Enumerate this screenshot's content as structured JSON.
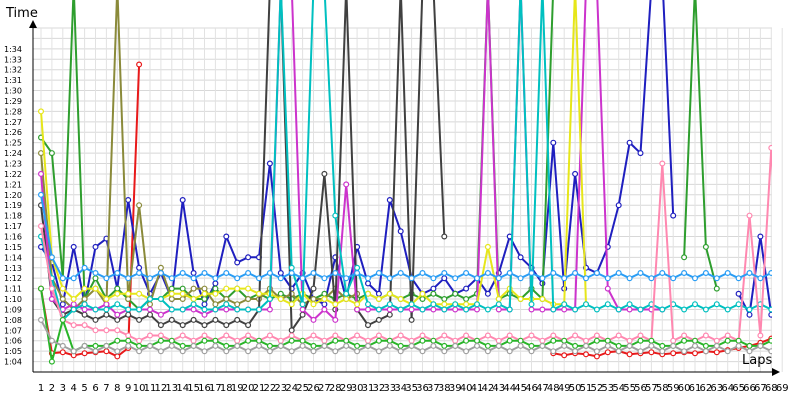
{
  "chart_data": {
    "type": "line",
    "title": "",
    "ylabel": "Time",
    "xlabel": "Laps",
    "x_range": [
      1,
      69
    ],
    "y_ticks": [
      "1:04",
      "1:05",
      "1:06",
      "1:07",
      "1:08",
      "1:09",
      "1:10",
      "1:11",
      "1:12",
      "1:13",
      "1:14",
      "1:15",
      "1:16",
      "1:17",
      "1:18",
      "1:19",
      "1:20",
      "1:21",
      "1:22",
      "1:23",
      "1:24",
      "1:25",
      "1:26",
      "1:27",
      "1:28",
      "1:29",
      "1:30",
      "1:31",
      "1:32",
      "1:33",
      "1:34"
    ],
    "y_range_seconds": [
      63,
      96
    ],
    "grid": true,
    "legend": "none",
    "series": [
      {
        "color": "#e8191a",
        "values": [
          71,
          64.8,
          64.9,
          64.6,
          64.8,
          64.9,
          65,
          64.5,
          65.3,
          92.5,
          null,
          null,
          null,
          null,
          null,
          null,
          null,
          null,
          null,
          null,
          null,
          null,
          null,
          null,
          null,
          null,
          null,
          null,
          null,
          null,
          null,
          null,
          null,
          null,
          null,
          null,
          null,
          null,
          null,
          null,
          null,
          null,
          null,
          null,
          null,
          null,
          null,
          64.8,
          64.6,
          64.8,
          64.7,
          64.5,
          64.9,
          65,
          64.7,
          64.8,
          64.9,
          64.7,
          64.8,
          64.9,
          64.8,
          65,
          64.9,
          65.1,
          65.3,
          65.5,
          65.8,
          66.2,
          66.8
        ]
      },
      {
        "color": "#1f1fbf",
        "values": [
          75,
          73.5,
          69.5,
          75,
          69.5,
          75,
          75.8,
          71,
          79.5,
          73,
          70.5,
          72.5,
          70,
          79.5,
          72.5,
          69.5,
          71.5,
          76,
          73.5,
          74,
          74,
          83,
          72.5,
          71,
          72.5,
          70,
          69.5,
          74,
          70,
          75,
          71.5,
          70.5,
          79.5,
          76.5,
          72,
          70.5,
          71,
          72,
          70.5,
          71,
          72,
          70.5,
          72.5,
          76,
          74,
          73,
          71.5,
          85,
          71,
          82,
          73,
          72.5,
          75,
          79,
          85,
          84,
          100,
          101,
          78,
          null,
          null,
          null,
          null,
          null,
          70.5,
          68.5,
          76,
          68.5,
          71.5
        ]
      },
      {
        "color": "#2e9e2e",
        "values": [
          85.5,
          84,
          72,
          100,
          70,
          72,
          70,
          71,
          70,
          69,
          70,
          70,
          71,
          71,
          70,
          70,
          71,
          70,
          71,
          70,
          70.5,
          70,
          70.5,
          70,
          70.5,
          70,
          70.5,
          70,
          70.5,
          70,
          70.5,
          70,
          70.5,
          70,
          70.5,
          70,
          70.5,
          70,
          70.5,
          70,
          70.5,
          100,
          70,
          70.5,
          70,
          71,
          70,
          100,
          null,
          null,
          null,
          null,
          null,
          null,
          null,
          null,
          null,
          null,
          null,
          74,
          100,
          75,
          71,
          null,
          null,
          null,
          null,
          null,
          null
        ]
      },
      {
        "color": "#8a8a3a",
        "values": [
          84,
          72,
          70,
          69,
          70,
          71,
          69.5,
          100,
          70,
          79,
          69.5,
          73,
          70,
          70,
          71,
          71,
          69.5,
          70,
          69.5,
          70,
          70,
          71,
          70,
          70.5,
          69.5,
          70,
          70,
          71,
          70,
          70.5,
          null,
          null,
          null,
          null,
          null,
          null,
          null,
          null,
          null,
          null,
          null,
          null,
          null,
          null,
          null,
          null,
          null,
          null,
          null,
          null,
          null,
          null,
          null,
          null,
          null,
          null,
          null,
          null,
          null,
          null,
          null,
          null,
          null,
          null,
          null,
          null,
          null,
          null,
          null
        ]
      },
      {
        "color": "#404040",
        "values": [
          79,
          70,
          68.5,
          69,
          68.5,
          68,
          68.5,
          68,
          68.5,
          68,
          68.5,
          67.5,
          68,
          67.5,
          68,
          67.5,
          68,
          67.5,
          68,
          67.5,
          69,
          100,
          100,
          67,
          68.5,
          71,
          82,
          69,
          100,
          69,
          67.5,
          68,
          68.5,
          100,
          68,
          100,
          100,
          76,
          null,
          null,
          null,
          null,
          null,
          null,
          null,
          null,
          null,
          null,
          null,
          null,
          null,
          null,
          null,
          null,
          null,
          null,
          null,
          null,
          null,
          null,
          null,
          null,
          null,
          null,
          null,
          null,
          null,
          null,
          null
        ]
      },
      {
        "color": "#cc33cc",
        "values": [
          82,
          70,
          69,
          69.5,
          69,
          69,
          69.5,
          68.5,
          69,
          69,
          69,
          68.5,
          69,
          69,
          69,
          68.5,
          69,
          69,
          69,
          69,
          69,
          69,
          100,
          100,
          69,
          68,
          69,
          68,
          81,
          69,
          69,
          69,
          69,
          69,
          69,
          69,
          69,
          69,
          69,
          69,
          69,
          100,
          69,
          69,
          100,
          69,
          69,
          69,
          69,
          69,
          100,
          100,
          71,
          69,
          69,
          69,
          69,
          69,
          null,
          null,
          null,
          null,
          null,
          null,
          null,
          null,
          null,
          null,
          null
        ]
      },
      {
        "color": "#e6e61a",
        "values": [
          88,
          74,
          71,
          70,
          71,
          71,
          70,
          70.5,
          70.5,
          70.5,
          70,
          70,
          70.5,
          70.5,
          70,
          70.5,
          70.5,
          71,
          71,
          71,
          70.5,
          70.5,
          70,
          69.5,
          70.5,
          69.5,
          70,
          69.5,
          70,
          69.5,
          70.5,
          70,
          70.5,
          70,
          69.5,
          70.5,
          69.5,
          69.5,
          69.5,
          69.5,
          69.5,
          75,
          70,
          71,
          70,
          70,
          70,
          69.5,
          69.5,
          100,
          69.5,
          null,
          null,
          null,
          null,
          null,
          null,
          null,
          null,
          null,
          null,
          null,
          null,
          null,
          null,
          null,
          null,
          null,
          null
        ]
      },
      {
        "color": "#00c0c0",
        "values": [
          76,
          72,
          68,
          69,
          69.5,
          69,
          69,
          69.5,
          69,
          69,
          70,
          70,
          69,
          69,
          69.5,
          69,
          69,
          69.5,
          69,
          69,
          69,
          70,
          100,
          73,
          69.5,
          100,
          100,
          78,
          70.5,
          73,
          69.5,
          69,
          69.5,
          69,
          69.5,
          69,
          69.5,
          69,
          69.5,
          69,
          69.5,
          69,
          69.5,
          69,
          100,
          69.5,
          100,
          69,
          69.5,
          69,
          69.5,
          69,
          69.5,
          69,
          69.5,
          69,
          69.5,
          69,
          69.5,
          69,
          69.5,
          69,
          69.5,
          69,
          69.5,
          69,
          69.5,
          69,
          69.5
        ]
      },
      {
        "color": "#ff88b0",
        "values": [
          77,
          71,
          68,
          67.5,
          67.5,
          67,
          67,
          67,
          66.5,
          66,
          66.5,
          66.5,
          66,
          66.5,
          66,
          66.5,
          66,
          66.5,
          66,
          66.5,
          66,
          66.5,
          66,
          66.5,
          66,
          66.5,
          66,
          66.5,
          66,
          66.5,
          66,
          66.5,
          66,
          66.5,
          66,
          66.5,
          66,
          66.5,
          66,
          66.5,
          66,
          66.5,
          66,
          66.5,
          66,
          66.5,
          66,
          66.5,
          66,
          66.5,
          66,
          66.5,
          66,
          66.5,
          66,
          66.5,
          66,
          83,
          66,
          66.5,
          66,
          66.5,
          66,
          66.5,
          66,
          78,
          66.5,
          84.5,
          66.5
        ]
      },
      {
        "color": "#28b428",
        "values": [
          71,
          64,
          68,
          65,
          65.5,
          65.5,
          65.5,
          66,
          66,
          65.5,
          65.5,
          66,
          66,
          65.5,
          65.5,
          66,
          66,
          65.5,
          65.5,
          66,
          66,
          65.5,
          65.5,
          66,
          66,
          65.5,
          65.5,
          66,
          66,
          65.5,
          65.5,
          66,
          66,
          65.5,
          65.5,
          66,
          66,
          65.5,
          65.5,
          66,
          66,
          65.5,
          65.5,
          66,
          66,
          65.5,
          65.5,
          66,
          66,
          65.5,
          65.5,
          66,
          66,
          65.5,
          65.5,
          66,
          66,
          65.5,
          65.5,
          66,
          66,
          65.5,
          65.5,
          66,
          66,
          65.5,
          65.5,
          66,
          66
        ]
      },
      {
        "color": "#2a9df4",
        "values": [
          80,
          74,
          72,
          72,
          73,
          72.5,
          72,
          72.5,
          72,
          72.5,
          72,
          72.5,
          72,
          72.5,
          72,
          72.5,
          72,
          72.5,
          72,
          72.5,
          72,
          72.5,
          72,
          72.5,
          72,
          72.5,
          72,
          72.5,
          72,
          72.5,
          72,
          72.5,
          72,
          72.5,
          72,
          72.5,
          72,
          72.5,
          72,
          72.5,
          72,
          72.5,
          72,
          72.5,
          72,
          72.5,
          72,
          72.5,
          72,
          72.5,
          72,
          72.5,
          72,
          72.5,
          72,
          72.5,
          72,
          72.5,
          72,
          72.5,
          72,
          72.5,
          72,
          72.5,
          72,
          72.5,
          72,
          72.5,
          72
        ]
      },
      {
        "color": "#a0a0a0",
        "values": [
          68,
          66,
          65.5,
          65,
          65.5,
          65,
          65.5,
          65,
          65.5,
          65,
          65.5,
          65,
          65.5,
          65,
          65.5,
          65,
          65.5,
          65,
          65.5,
          65,
          65.5,
          65,
          65.5,
          65,
          65.5,
          65,
          65.5,
          65,
          65.5,
          65,
          65.5,
          65,
          65.5,
          65,
          65.5,
          65,
          65.5,
          65,
          65.5,
          65,
          65.5,
          65,
          65.5,
          65,
          65.5,
          65,
          65.5,
          65,
          65.5,
          65,
          65.5,
          65,
          65.5,
          65,
          65.5,
          65,
          65.5,
          65,
          65.5,
          65,
          65.5,
          65,
          65.5,
          65,
          65.5,
          65,
          65.5,
          65,
          65.5
        ]
      }
    ]
  }
}
